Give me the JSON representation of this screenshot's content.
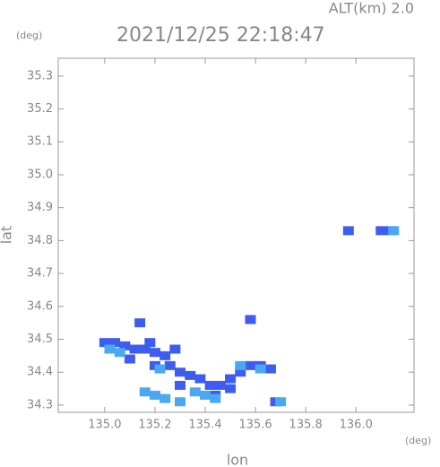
{
  "chart_data": {
    "type": "scatter",
    "title": "2021/12/25 22:18:47",
    "subtitle": "ALT(km) 2.0",
    "y_unit": "(deg)",
    "x_unit": "(deg)",
    "xlabel": "lon",
    "ylabel": "lat",
    "xlim": [
      134.815,
      136.231
    ],
    "ylim": [
      34.278,
      35.354
    ],
    "xticks": [
      {
        "value": 135.0,
        "label": "135.0"
      },
      {
        "value": 135.2,
        "label": "135.2"
      },
      {
        "value": 135.4,
        "label": "135.4"
      },
      {
        "value": 135.6,
        "label": "135.6"
      },
      {
        "value": 135.8,
        "label": "135.8"
      },
      {
        "value": 136.0,
        "label": "136.0"
      }
    ],
    "yticks": [
      34.3,
      34.4,
      34.5,
      34.6,
      34.7,
      34.8,
      34.9,
      {
        "value": 35.0,
        "label": "35.0"
      },
      35.1,
      35.2,
      35.3
    ],
    "series": [
      {
        "color": "#3f5cf0",
        "x": [
          135.0,
          135.04,
          135.08,
          135.12,
          135.14,
          135.16,
          135.2,
          135.24,
          135.2,
          135.26,
          135.3,
          135.34,
          135.38,
          135.42,
          135.46,
          135.5,
          135.54,
          135.58,
          135.62,
          135.66,
          135.44,
          135.5,
          135.3,
          135.58,
          135.97,
          136.1,
          136.14,
          135.68,
          135.1,
          135.18,
          135.28
        ],
        "values": [
          34.49,
          34.49,
          34.48,
          34.47,
          34.55,
          34.47,
          34.46,
          34.45,
          34.42,
          34.42,
          34.4,
          34.39,
          34.38,
          34.36,
          34.36,
          34.38,
          34.4,
          34.42,
          34.42,
          34.41,
          34.33,
          34.35,
          34.36,
          34.56,
          34.83,
          34.83,
          34.83,
          34.31,
          34.44,
          34.49,
          34.47
        ]
      },
      {
        "color": "#4aa8f0",
        "x": [
          135.02,
          135.06,
          135.4,
          135.44,
          135.16,
          135.2,
          135.24,
          135.3,
          135.36,
          135.54,
          135.62,
          136.15,
          135.7,
          135.22
        ],
        "values": [
          34.47,
          34.46,
          34.33,
          34.32,
          34.34,
          34.33,
          34.32,
          34.31,
          34.34,
          34.42,
          34.41,
          34.83,
          34.31,
          34.41
        ]
      }
    ]
  }
}
